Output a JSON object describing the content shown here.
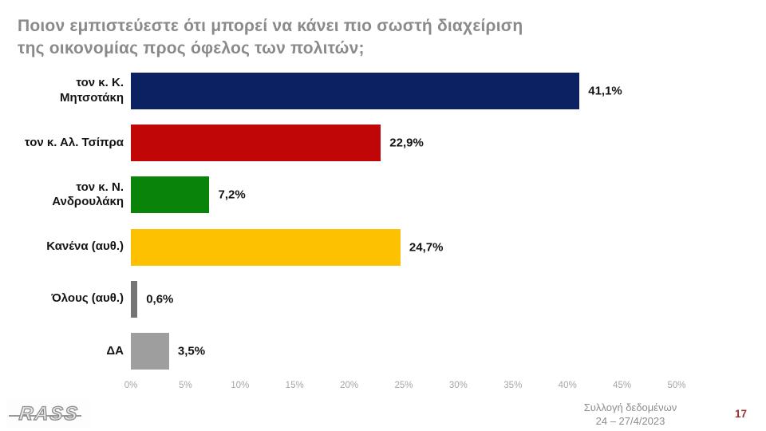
{
  "title": {
    "lines": [
      "Ποιον εμπιστεύεστε ότι μπορεί να κάνει πιο σωστή διαχείριση",
      "της οικονομίας προς όφελος των πολιτών;"
    ]
  },
  "chart_data": {
    "type": "bar",
    "orientation": "horizontal",
    "title": "Ποιον εμπιστεύεστε ότι μπορεί να κάνει πιο σωστή διαχείριση της οικονομίας προς όφελος των πολιτών;",
    "categories": [
      "τον κ. Κ. Μητσοτάκη",
      "τον κ. Αλ. Τσίπρα",
      "τον κ. Ν. Ανδρουλάκη",
      "Κανένα (αυθ.)",
      "Όλους (αυθ.)",
      "ΔΑ"
    ],
    "category_lines": [
      [
        "τον κ. Κ.",
        "Μητσοτάκη"
      ],
      [
        "τον κ. Αλ. Τσίπρα"
      ],
      [
        "τον κ. Ν.",
        "Ανδρουλάκη"
      ],
      [
        "Κανένα (αυθ.)"
      ],
      [
        "Όλους (αυθ.)"
      ],
      [
        "ΔΑ"
      ]
    ],
    "values": [
      41.1,
      22.9,
      7.2,
      24.7,
      0.6,
      3.5
    ],
    "value_labels": [
      "41,1%",
      "22,9%",
      "7,2%",
      "24,7%",
      "0,6%",
      "3,5%"
    ],
    "bar_colors": [
      "#0b2161",
      "#c00606",
      "#0a8408",
      "#fdc101",
      "#757575",
      "#9e9e9e"
    ],
    "xlim": [
      0,
      50
    ],
    "x_tick_values": [
      0,
      5,
      10,
      15,
      20,
      25,
      30,
      35,
      40,
      45,
      50
    ],
    "x_tick_labels": [
      "0%",
      "5%",
      "10%",
      "15%",
      "20%",
      "25%",
      "30%",
      "35%",
      "40%",
      "45%",
      "50%"
    ],
    "grid": false,
    "legend": false,
    "xlabel": "",
    "ylabel": ""
  },
  "footer": {
    "logo_text": "RASS",
    "collection_line1": "Συλλογή δεδομένων",
    "collection_line2": "24 – 27/4/2023",
    "page_number": "17"
  }
}
